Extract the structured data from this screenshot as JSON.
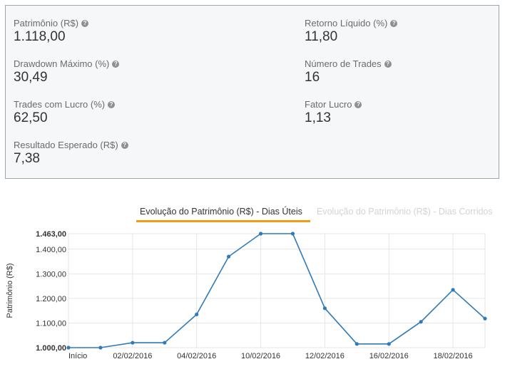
{
  "stats": [
    {
      "label": "Patrimônio (R$)",
      "value": "1.118,00"
    },
    {
      "label": "Retorno Líquido (%)",
      "value": "11,80"
    },
    {
      "label": "Drawdown Máximo (%)",
      "value": "30,49"
    },
    {
      "label": "Número de Trades",
      "value": "16"
    },
    {
      "label": "Trades com Lucro (%)",
      "value": "62,50"
    },
    {
      "label": "Fator Lucro",
      "value": "1,13"
    },
    {
      "label": "Resultado Esperado (R$)",
      "value": "7,38"
    }
  ],
  "tabs": {
    "active": "Evolução do Patrimônio (R$) - Dias Úteis",
    "inactive": "Evolução do Patrimônio (R$) - Dias Corridos"
  },
  "colors": {
    "accent": "#f39c12",
    "series": "#2f7ab8",
    "grid": "#e6e6e6"
  },
  "chart_data": {
    "type": "line",
    "ylabel": "Patrimônio (R$)",
    "ylim": [
      1000,
      1463
    ],
    "yticks": [
      {
        "value": 1463,
        "label": "1.463,00",
        "bold": true
      },
      {
        "value": 1400,
        "label": "1.400,00"
      },
      {
        "value": 1300,
        "label": "1.300,00"
      },
      {
        "value": 1200,
        "label": "1.200,00"
      },
      {
        "value": 1100,
        "label": "1.100,00"
      },
      {
        "value": 1000,
        "label": "1.000,00",
        "bold": true
      }
    ],
    "xticks": [
      {
        "index": 0,
        "label": "Início"
      },
      {
        "index": 2,
        "label": "02/02/2016"
      },
      {
        "index": 4,
        "label": "04/02/2016"
      },
      {
        "index": 6,
        "label": "10/02/2016"
      },
      {
        "index": 8,
        "label": "12/02/2016"
      },
      {
        "index": 10,
        "label": "16/02/2016"
      },
      {
        "index": 12,
        "label": "18/02/2016"
      }
    ],
    "values": [
      1000,
      1000,
      1020,
      1020,
      1135,
      1370,
      1463,
      1463,
      1160,
      1015,
      1015,
      1105,
      1235,
      1118
    ]
  }
}
